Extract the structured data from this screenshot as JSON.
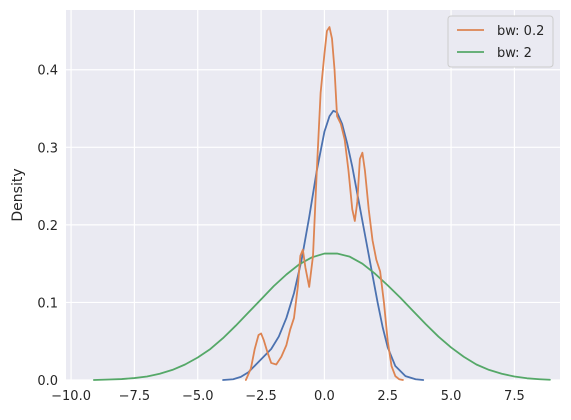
{
  "chart_data": {
    "type": "line",
    "title": "",
    "xlabel": "",
    "ylabel": "Density",
    "xlim": [
      -10.2,
      9.3
    ],
    "ylim": [
      0,
      0.477
    ],
    "xticks": [
      -10.0,
      -7.5,
      -5.0,
      -2.5,
      0.0,
      2.5,
      5.0,
      7.5
    ],
    "xtick_labels": [
      "−10.0",
      "−7.5",
      "−5.0",
      "−2.5",
      "0.0",
      "2.5",
      "5.0",
      "7.5"
    ],
    "yticks": [
      0.0,
      0.1,
      0.2,
      0.3,
      0.4
    ],
    "ytick_labels": [
      "0.0",
      "0.1",
      "0.2",
      "0.3",
      "0.4"
    ],
    "grid": true,
    "legend_position": "top-right",
    "series": [
      {
        "name": "",
        "color": "#4c72b0",
        "legend": false,
        "x": [
          -4.0,
          -3.6,
          -3.3,
          -3.0,
          -2.7,
          -2.4,
          -2.1,
          -1.8,
          -1.5,
          -1.2,
          -0.9,
          -0.6,
          -0.3,
          0.0,
          0.2,
          0.35,
          0.5,
          0.7,
          0.9,
          1.1,
          1.3,
          1.5,
          1.7,
          1.9,
          2.1,
          2.3,
          2.5,
          2.8,
          3.2,
          3.6,
          3.9
        ],
        "values": [
          0.0,
          0.001,
          0.004,
          0.01,
          0.02,
          0.03,
          0.04,
          0.056,
          0.08,
          0.112,
          0.155,
          0.21,
          0.27,
          0.32,
          0.34,
          0.347,
          0.345,
          0.33,
          0.305,
          0.275,
          0.24,
          0.205,
          0.17,
          0.135,
          0.1,
          0.068,
          0.042,
          0.018,
          0.005,
          0.001,
          0.0
        ]
      },
      {
        "name": "bw: 0.2",
        "color": "#dd8452",
        "legend": true,
        "x": [
          -3.1,
          -2.9,
          -2.75,
          -2.6,
          -2.5,
          -2.4,
          -2.25,
          -2.1,
          -1.9,
          -1.7,
          -1.5,
          -1.35,
          -1.2,
          -1.05,
          -0.95,
          -0.85,
          -0.75,
          -0.6,
          -0.45,
          -0.3,
          -0.15,
          0.0,
          0.1,
          0.2,
          0.3,
          0.4,
          0.5,
          0.65,
          0.8,
          0.95,
          1.1,
          1.2,
          1.3,
          1.4,
          1.5,
          1.6,
          1.75,
          1.9,
          2.05,
          2.2,
          2.35,
          2.5,
          2.65,
          2.8,
          2.95,
          3.1
        ],
        "values": [
          0.0,
          0.015,
          0.04,
          0.058,
          0.06,
          0.052,
          0.036,
          0.022,
          0.02,
          0.03,
          0.045,
          0.065,
          0.08,
          0.12,
          0.16,
          0.168,
          0.145,
          0.12,
          0.16,
          0.27,
          0.37,
          0.42,
          0.45,
          0.455,
          0.44,
          0.4,
          0.34,
          0.33,
          0.31,
          0.27,
          0.22,
          0.205,
          0.23,
          0.285,
          0.293,
          0.27,
          0.22,
          0.18,
          0.155,
          0.14,
          0.1,
          0.05,
          0.018,
          0.005,
          0.001,
          0.0
        ]
      },
      {
        "name": "bw: 2",
        "color": "#55a868",
        "legend": true,
        "x": [
          -9.1,
          -8.5,
          -8.0,
          -7.5,
          -7.0,
          -6.5,
          -6.0,
          -5.5,
          -5.0,
          -4.5,
          -4.0,
          -3.5,
          -3.0,
          -2.5,
          -2.0,
          -1.5,
          -1.0,
          -0.5,
          0.0,
          0.5,
          1.0,
          1.5,
          2.0,
          2.5,
          3.0,
          3.5,
          4.0,
          4.5,
          5.0,
          5.5,
          6.0,
          6.5,
          7.0,
          7.5,
          8.0,
          8.5,
          8.9
        ],
        "values": [
          0.0,
          0.0006,
          0.0012,
          0.0025,
          0.0045,
          0.008,
          0.013,
          0.02,
          0.029,
          0.04,
          0.054,
          0.07,
          0.087,
          0.104,
          0.121,
          0.136,
          0.149,
          0.158,
          0.163,
          0.163,
          0.159,
          0.15,
          0.137,
          0.122,
          0.106,
          0.089,
          0.072,
          0.056,
          0.042,
          0.03,
          0.02,
          0.013,
          0.008,
          0.0045,
          0.0022,
          0.001,
          0.0003
        ]
      }
    ]
  }
}
